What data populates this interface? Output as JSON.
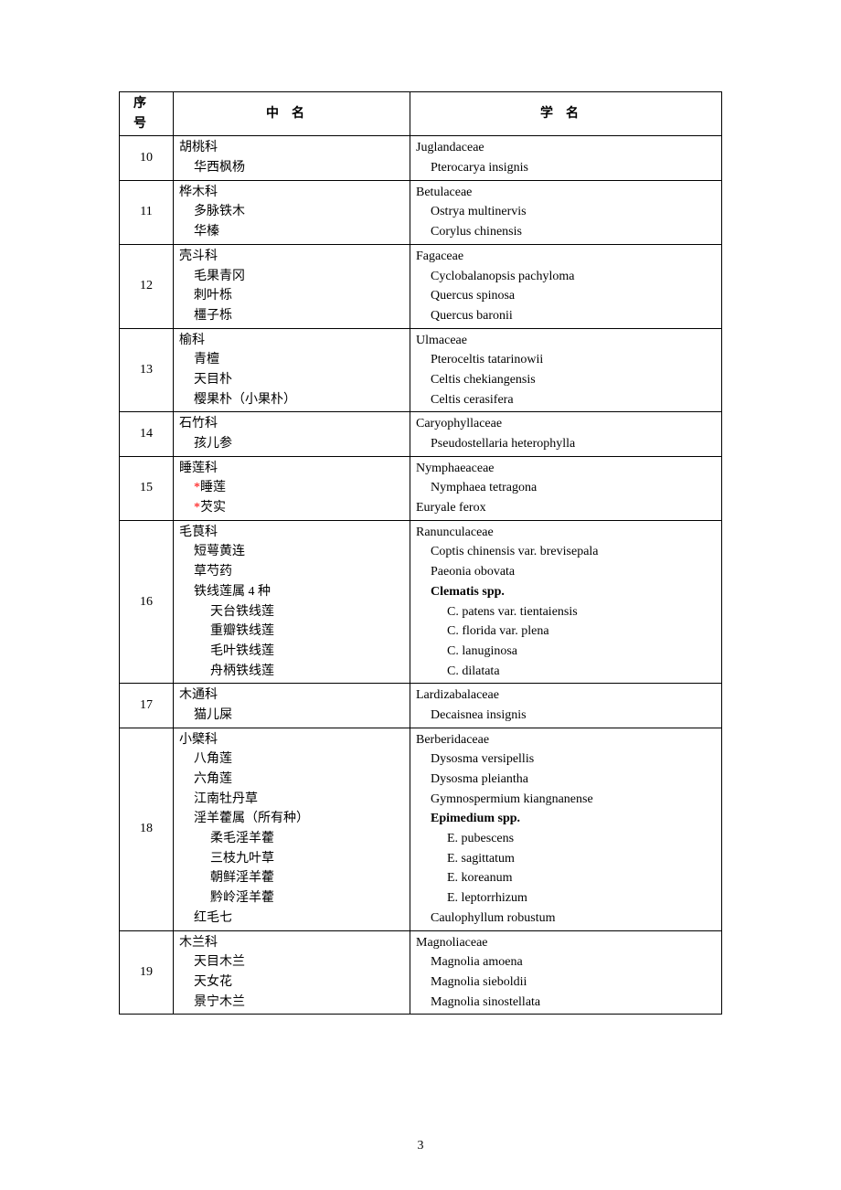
{
  "headers": {
    "num": "序号",
    "cn": "中名",
    "lat": "学名"
  },
  "page_number": "3",
  "colors": {
    "star": "#ff0000",
    "border": "#000000",
    "bg": "#ffffff",
    "text": "#000000"
  },
  "rows": [
    {
      "num": "10",
      "cn": [
        {
          "t": "胡桃科",
          "lvl": "family"
        },
        {
          "t": "华西枫杨",
          "lvl": "sp"
        }
      ],
      "lat": [
        {
          "t": "Juglandaceae",
          "lvl": "family"
        },
        {
          "t": "Pterocarya insignis",
          "lvl": "sp"
        }
      ]
    },
    {
      "num": "11",
      "cn": [
        {
          "t": "桦木科",
          "lvl": "family"
        },
        {
          "t": "多脉铁木",
          "lvl": "sp"
        },
        {
          "t": "华榛",
          "lvl": "sp"
        }
      ],
      "lat": [
        {
          "t": "Betulaceae",
          "lvl": "family"
        },
        {
          "t": "Ostrya multinervis",
          "lvl": "sp"
        },
        {
          "t": "Corylus chinensis",
          "lvl": "sp"
        }
      ]
    },
    {
      "num": "12",
      "cn": [
        {
          "t": "壳斗科",
          "lvl": "family"
        },
        {
          "t": "毛果青冈",
          "lvl": "sp"
        },
        {
          "t": "刺叶栎",
          "lvl": "sp"
        },
        {
          "t": "橿子栎",
          "lvl": "sp"
        }
      ],
      "lat": [
        {
          "t": "Fagaceae",
          "lvl": "family"
        },
        {
          "t": "Cyclobalanopsis pachyloma",
          "lvl": "sp"
        },
        {
          "t": "Quercus spinosa",
          "lvl": "sp"
        },
        {
          "t": "Quercus baronii",
          "lvl": "sp"
        }
      ]
    },
    {
      "num": "13",
      "cn": [
        {
          "t": "榆科",
          "lvl": "family"
        },
        {
          "t": "青檀",
          "lvl": "sp"
        },
        {
          "t": "天目朴",
          "lvl": "sp"
        },
        {
          "t": "樱果朴（小果朴）",
          "lvl": "sp"
        }
      ],
      "lat": [
        {
          "t": "Ulmaceae",
          "lvl": "family"
        },
        {
          "t": "Pteroceltis tatarinowii",
          "lvl": "sp"
        },
        {
          "t": "Celtis chekiangensis",
          "lvl": "sp"
        },
        {
          "t": "Celtis cerasifera",
          "lvl": "sp"
        }
      ]
    },
    {
      "num": "14",
      "cn": [
        {
          "t": "石竹科",
          "lvl": "family"
        },
        {
          "t": "孩儿参",
          "lvl": "sp"
        }
      ],
      "lat": [
        {
          "t": "Caryophyllaceae",
          "lvl": "family"
        },
        {
          "t": "Pseudostellaria heterophylla",
          "lvl": "sp"
        }
      ]
    },
    {
      "num": "15",
      "cn": [
        {
          "t": "睡莲科",
          "lvl": "family"
        },
        {
          "t": "睡莲",
          "lvl": "sp",
          "star": true
        },
        {
          "t": "芡实",
          "lvl": "sp",
          "star": true
        }
      ],
      "lat": [
        {
          "t": "Nymphaeaceae",
          "lvl": "family"
        },
        {
          "t": "Nymphaea tetragona",
          "lvl": "sp"
        },
        {
          "t": "Euryale ferox",
          "lvl": "family"
        }
      ]
    },
    {
      "num": "16",
      "cn": [
        {
          "t": "毛茛科",
          "lvl": "family"
        },
        {
          "t": "短萼黄连",
          "lvl": "sp"
        },
        {
          "t": "草芍药",
          "lvl": "sp"
        },
        {
          "t": "铁线莲属 4 种",
          "lvl": "sp"
        },
        {
          "t": "天台铁线莲",
          "lvl": "sub"
        },
        {
          "t": "重瓣铁线莲",
          "lvl": "sub"
        },
        {
          "t": "毛叶铁线莲",
          "lvl": "sub"
        },
        {
          "t": "舟柄铁线莲",
          "lvl": "sub"
        }
      ],
      "lat": [
        {
          "t": "Ranunculaceae",
          "lvl": "family"
        },
        {
          "t": "Coptis chinensis var. brevisepala",
          "lvl": "sp"
        },
        {
          "t": "Paeonia obovata",
          "lvl": "sp"
        },
        {
          "t": "Clematis spp.",
          "lvl": "sp",
          "bold": true
        },
        {
          "t": "C. patens var. tientaiensis",
          "lvl": "sub"
        },
        {
          "t": "C. florida var. plena",
          "lvl": "sub"
        },
        {
          "t": "C. lanuginosa",
          "lvl": "sub"
        },
        {
          "t": "C. dilatata",
          "lvl": "sub"
        }
      ]
    },
    {
      "num": "17",
      "cn": [
        {
          "t": "木通科",
          "lvl": "family"
        },
        {
          "t": "猫儿屎",
          "lvl": "sp"
        }
      ],
      "lat": [
        {
          "t": "Lardizabalaceae",
          "lvl": "family"
        },
        {
          "t": "Decaisnea insignis",
          "lvl": "sp"
        }
      ]
    },
    {
      "num": "18",
      "cn": [
        {
          "t": "小檗科",
          "lvl": "family"
        },
        {
          "t": "八角莲",
          "lvl": "sp"
        },
        {
          "t": "六角莲",
          "lvl": "sp"
        },
        {
          "t": "江南牡丹草",
          "lvl": "sp"
        },
        {
          "t": "淫羊藿属（所有种）",
          "lvl": "sp"
        },
        {
          "t": "柔毛淫羊藿",
          "lvl": "sub"
        },
        {
          "t": "三枝九叶草",
          "lvl": "sub"
        },
        {
          "t": "朝鲜淫羊藿",
          "lvl": "sub"
        },
        {
          "t": "黔岭淫羊藿",
          "lvl": "sub"
        },
        {
          "t": "红毛七",
          "lvl": "sp"
        }
      ],
      "lat": [
        {
          "t": "Berberidaceae",
          "lvl": "family"
        },
        {
          "t": "Dysosma versipellis",
          "lvl": "sp"
        },
        {
          "t": "Dysosma pleiantha",
          "lvl": "sp"
        },
        {
          "t": "Gymnospermium kiangnanense",
          "lvl": "sp"
        },
        {
          "t": "Epimedium spp.",
          "lvl": "sp",
          "bold": true
        },
        {
          "t": "E. pubescens",
          "lvl": "sub"
        },
        {
          "t": "E. sagittatum",
          "lvl": "sub"
        },
        {
          "t": "E. koreanum",
          "lvl": "sub"
        },
        {
          "t": "E. leptorrhizum",
          "lvl": "sub"
        },
        {
          "t": "Caulophyllum robustum",
          "lvl": "sp"
        }
      ]
    },
    {
      "num": "19",
      "cn": [
        {
          "t": "木兰科",
          "lvl": "family"
        },
        {
          "t": "天目木兰",
          "lvl": "sp"
        },
        {
          "t": "天女花",
          "lvl": "sp"
        },
        {
          "t": "景宁木兰",
          "lvl": "sp"
        }
      ],
      "lat": [
        {
          "t": "Magnoliaceae",
          "lvl": "family"
        },
        {
          "t": "Magnolia amoena",
          "lvl": "sp"
        },
        {
          "t": "Magnolia sieboldii",
          "lvl": "sp"
        },
        {
          "t": "Magnolia sinostellata",
          "lvl": "sp"
        }
      ]
    }
  ]
}
